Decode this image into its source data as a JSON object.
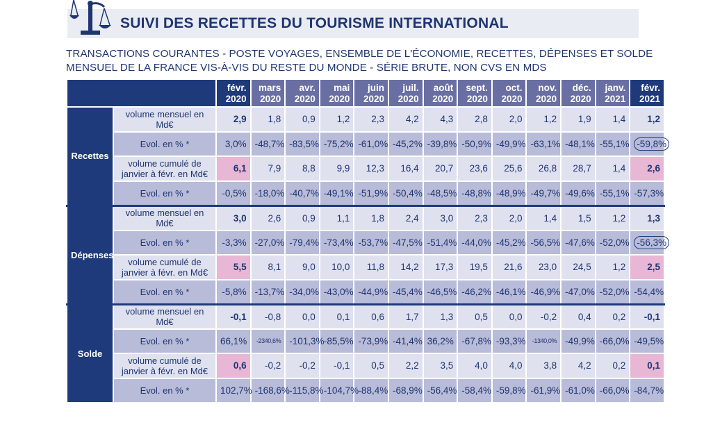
{
  "title": "SUIVI DES RECETTES DU TOURISME INTERNATIONAL",
  "subtitle_line1": "TRANSACTIONS COURANTES - POSTE VOYAGES, ENSEMBLE DE L'ÉCONOMIE, RECETTES, DÉPENSES ET SOLDE",
  "subtitle_line2": "MENSUEL DE LA FRANCE VIS-À-VIS DU RESTE DU MONDE - SÉRIE BRUTE, NON CVS EN MDS",
  "logo_icon": "scales-icon",
  "colors": {
    "navy": "#1f3a7a",
    "header": "#6a6fa3",
    "light": "#dfe1ef",
    "medium": "#b8bcd9",
    "highlight": "#e8b7d5"
  },
  "months": [
    [
      "févr.",
      "2020"
    ],
    [
      "mars",
      "2020"
    ],
    [
      "avr.",
      "2020"
    ],
    [
      "mai",
      "2020"
    ],
    [
      "juin",
      "2020"
    ],
    [
      "juil.",
      "2020"
    ],
    [
      "août",
      "2020"
    ],
    [
      "sept.",
      "2020"
    ],
    [
      "oct.",
      "2020"
    ],
    [
      "nov.",
      "2020"
    ],
    [
      "déc.",
      "2020"
    ],
    [
      "janv.",
      "2021"
    ],
    [
      "févr.",
      "2021"
    ]
  ],
  "groups": [
    {
      "name": "Recettes",
      "rows": [
        {
          "label": "volume mensuel en Md€",
          "values": [
            "2,9",
            "1,8",
            "0,9",
            "1,2",
            "2,3",
            "4,2",
            "4,3",
            "2,8",
            "2,0",
            "1,2",
            "1,9",
            "1,4",
            "1,2"
          ]
        },
        {
          "label": "Evol. en % *",
          "values": [
            "3,0%",
            "-48,7%",
            "-83,5%",
            "-75,2%",
            "-61,0%",
            "-45,2%",
            "-39,8%",
            "-50,9%",
            "-49,9%",
            "-63,1%",
            "-48,1%",
            "-55,1%",
            "-59,8%"
          ],
          "circled_last": true
        },
        {
          "label": "volume cumulé de janvier à févr. en Md€",
          "values": [
            "6,1",
            "7,9",
            "8,8",
            "9,9",
            "12,3",
            "16,4",
            "20,7",
            "23,6",
            "25,6",
            "26,8",
            "28,7",
            "1,4",
            "2,6"
          ],
          "highlight": true
        },
        {
          "label": "Evol. en % *",
          "values": [
            "-0,5%",
            "-18,0%",
            "-40,7%",
            "-49,1%",
            "-51,9%",
            "-50,4%",
            "-48,5%",
            "-48,8%",
            "-48,9%",
            "-49,7%",
            "-49,6%",
            "-55,1%",
            "-57,3%"
          ]
        }
      ]
    },
    {
      "name": "Dépenses",
      "rows": [
        {
          "label": "volume mensuel en Md€",
          "values": [
            "3,0",
            "2,6",
            "0,9",
            "1,1",
            "1,8",
            "2,4",
            "3,0",
            "2,3",
            "2,0",
            "1,4",
            "1,5",
            "1,2",
            "1,3"
          ]
        },
        {
          "label": "Evol. en % *",
          "values": [
            "-3,3%",
            "-27,0%",
            "-79,4%",
            "-73,4%",
            "-53,7%",
            "-47,5%",
            "-51,4%",
            "-44,0%",
            "-45,2%",
            "-56,5%",
            "-47,6%",
            "-52,0%",
            "-56,3%"
          ],
          "circled_last": true
        },
        {
          "label": "volume cumulé de janvier à févr. en Md€",
          "values": [
            "5,5",
            "8,1",
            "9,0",
            "10,0",
            "11,8",
            "14,2",
            "17,3",
            "19,5",
            "21,6",
            "23,0",
            "24,5",
            "1,2",
            "2,5"
          ],
          "highlight": true
        },
        {
          "label": "Evol. en % *",
          "values": [
            "-5,8%",
            "-13,7%",
            "-34,0%",
            "-43,0%",
            "-44,9%",
            "-45,4%",
            "-46,5%",
            "-46,2%",
            "-46,1%",
            "-46,9%",
            "-47,0%",
            "-52,0%",
            "-54,4%"
          ]
        }
      ]
    },
    {
      "name": "Solde",
      "rows": [
        {
          "label": "volume mensuel en Md€",
          "values": [
            "-0,1",
            "-0,8",
            "0,0",
            "0,1",
            "0,6",
            "1,7",
            "1,3",
            "0,5",
            "0,0",
            "-0,2",
            "0,4",
            "0,2",
            "-0,1"
          ]
        },
        {
          "label": "Evol. en % *",
          "values": [
            "66,1%",
            "-2340,6%",
            "-101,3%",
            "-85,5%",
            "-73,9%",
            "-41,4%",
            "36,2%",
            "-67,8%",
            "-93,3%",
            "-1340,0%",
            "-49,9%",
            "-66,0%",
            "-49,5%"
          ]
        },
        {
          "label": "volume cumulé de janvier à févr. en Md€",
          "values": [
            "0,6",
            "-0,2",
            "-0,2",
            "-0,1",
            "0,5",
            "2,2",
            "3,5",
            "4,0",
            "4,0",
            "3,8",
            "4,2",
            "0,2",
            "0,1"
          ],
          "highlight": true
        },
        {
          "label": "Evol. en % *",
          "values": [
            "102,7%",
            "-168,6%",
            "-115,8%",
            "-104,7%",
            "-88,4%",
            "-68,9%",
            "-56,4%",
            "-58,4%",
            "-59,8%",
            "-61,9%",
            "-61,0%",
            "-66,0%",
            "-84,7%"
          ]
        }
      ]
    }
  ]
}
